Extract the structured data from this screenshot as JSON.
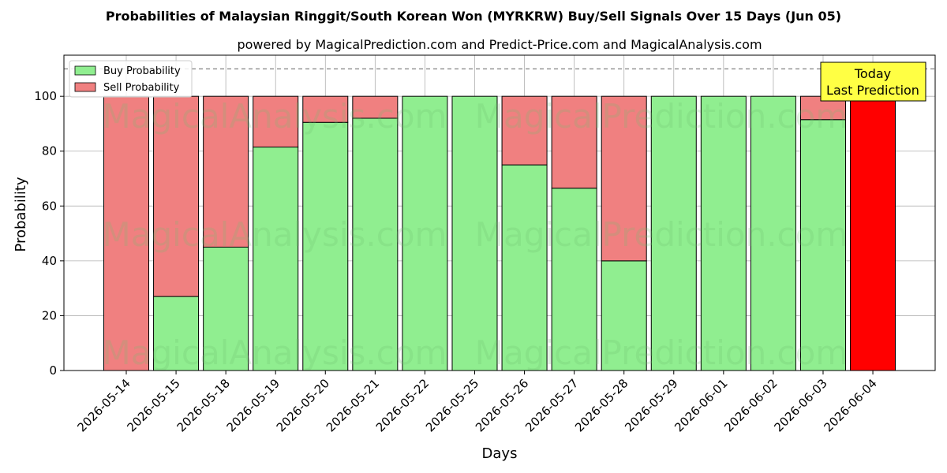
{
  "chart_data": {
    "type": "bar",
    "stacked": true,
    "title": "Probabilities of Malaysian Ringgit/South Korean Won (MYRKRW) Buy/Sell Signals Over 15 Days (Jun 05)",
    "subtitle": "powered by MagicalPrediction.com and Predict-Price.com and MagicalAnalysis.com",
    "xlabel": "Days",
    "ylabel": "Probability",
    "ylim": [
      0,
      115
    ],
    "yticks": [
      0,
      20,
      40,
      60,
      80,
      100
    ],
    "grid": true,
    "legend_position": "top-left",
    "reference_line": 110,
    "categories": [
      "2026-05-14",
      "2026-05-15",
      "2026-05-18",
      "2026-05-19",
      "2026-05-20",
      "2026-05-21",
      "2026-05-22",
      "2026-05-25",
      "2026-05-26",
      "2026-05-27",
      "2026-05-28",
      "2026-05-29",
      "2026-06-01",
      "2026-06-02",
      "2026-06-03",
      "2026-06-04"
    ],
    "series": [
      {
        "name": "Buy Probability",
        "color": "#90ee90",
        "values": [
          0,
          27,
          45,
          81.5,
          90.5,
          92,
          100,
          100,
          75,
          66.5,
          40,
          100,
          100,
          100,
          91.5,
          0
        ]
      },
      {
        "name": "Sell Probability",
        "color": "#f08080",
        "values": [
          100,
          73,
          55,
          18.5,
          9.5,
          8,
          0,
          0,
          25,
          33.5,
          60,
          0,
          0,
          0,
          8.5,
          100
        ]
      }
    ],
    "highlight": {
      "category": "2026-06-04",
      "color": "#ff0000"
    },
    "annotation": {
      "line1": "Today",
      "line2": "Last Prediction",
      "background": "#ffff44"
    },
    "watermarks": [
      "MagicalAnalysis.com",
      "MagicalPrediction.com"
    ]
  }
}
